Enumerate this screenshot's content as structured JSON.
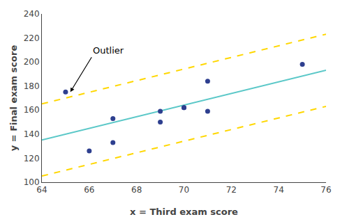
{
  "chart_data": {
    "type": "scatter",
    "xlabel": "x = Third exam score",
    "ylabel": "y = Final exam score",
    "series": [
      {
        "type": "line",
        "color": "#FFD700",
        "line_style": "dashed",
        "x": [
          64,
          76
        ],
        "values": [
          165.17,
          223.13
        ]
      },
      {
        "type": "line",
        "color": "#FFD700",
        "line_style": "dashed",
        "x": [
          64,
          76
        ],
        "values": [
          105.17,
          163.13
        ]
      },
      {
        "type": "line",
        "color": "#5BC8C8",
        "line_style": "solid",
        "x": [
          64,
          76
        ],
        "values": [
          135.17,
          193.13
        ]
      },
      {
        "type": "scatter",
        "color": "#2E3F8F",
        "marker": "circle",
        "x": [
          65,
          66,
          67,
          67,
          69,
          69,
          70,
          70,
          71,
          71,
          75
        ],
        "values": [
          175,
          126,
          133,
          153,
          150,
          159,
          162,
          162,
          184,
          159,
          198
        ]
      }
    ],
    "annotations": [
      {
        "text": "Outlier",
        "x": 65.2,
        "y": 175,
        "text_x": 66.1,
        "text_y": 204
      }
    ],
    "xlim": [
      64,
      76
    ],
    "ylim": [
      100,
      240
    ],
    "xticks": [
      64,
      66,
      68,
      70,
      72,
      74,
      76
    ],
    "yticks": [
      100,
      120,
      140,
      160,
      180,
      200,
      220,
      240
    ],
    "grid": false
  }
}
